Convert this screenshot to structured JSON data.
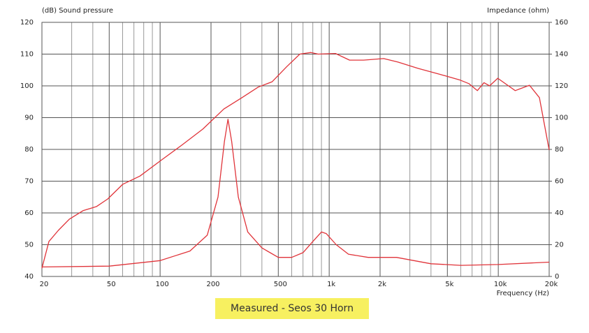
{
  "chart_data": {
    "type": "line",
    "title": "Measured - Seos 30 Horn",
    "ylabel": "(dB)  Sound pressure",
    "y2label": "Impedance  (ohm)",
    "xlabel": "Frequency  (Hz)",
    "xscale": "log",
    "grid": true,
    "xlim": [
      20,
      20000
    ],
    "xticks": [
      20,
      50,
      100,
      200,
      500,
      {
        "value": 1000,
        "label": "1k"
      },
      {
        "value": 2000,
        "label": "2k"
      },
      {
        "value": 5000,
        "label": "5k"
      },
      {
        "value": 10000,
        "label": "10k"
      },
      {
        "value": 20000,
        "label": "20k"
      }
    ],
    "xgrid": [
      30,
      40,
      60,
      70,
      80,
      90,
      300,
      400,
      600,
      700,
      800,
      900,
      3000,
      4000,
      6000,
      7000,
      8000,
      9000
    ],
    "ylim": [
      40,
      120
    ],
    "yticks": [
      40,
      50,
      60,
      70,
      80,
      90,
      100,
      110,
      120
    ],
    "y2lim": [
      0,
      160
    ],
    "y2ticks": [
      0,
      20,
      40,
      60,
      80,
      100,
      120,
      140,
      160
    ],
    "series": [
      {
        "name": "Sound pressure",
        "color": "#e0343a",
        "x": [
          20,
          22,
          25,
          29,
          35,
          42,
          49,
          60,
          76,
          101,
          134,
          179,
          238,
          305,
          380,
          460,
          560,
          670,
          780,
          860,
          1090,
          1320,
          1600,
          2100,
          2550,
          3360,
          4480,
          5960,
          6700,
          7520,
          8230,
          8880,
          9930,
          12600,
          15300,
          17500,
          20000
        ],
        "values": [
          42.6,
          51,
          54.5,
          58,
          60.7,
          62,
          64.4,
          69,
          71.6,
          76.5,
          81.3,
          86.4,
          92.7,
          96.3,
          99.6,
          101.3,
          106,
          110,
          110.5,
          110,
          110.2,
          108.1,
          108.1,
          108.6,
          107.5,
          105.5,
          103.7,
          101.8,
          100.7,
          98.5,
          101,
          100,
          102.4,
          98.5,
          100.2,
          96.3,
          79.8
        ]
      },
      {
        "name": "Impedance",
        "color": "#e0343a",
        "axis": "y2",
        "x": [
          20,
          50,
          100,
          150,
          190,
          220,
          240,
          252,
          265,
          290,
          330,
          400,
          500,
          600,
          700,
          800,
          900,
          960,
          1100,
          1300,
          1700,
          2500,
          4000,
          6000,
          10000,
          20000
        ],
        "values": [
          6,
          6.5,
          10,
          16,
          26,
          50,
          85,
          99,
          85,
          50,
          28,
          18,
          12,
          12,
          15,
          22,
          28,
          27,
          20,
          14,
          12,
          12,
          8,
          7,
          7.5,
          9
        ]
      }
    ]
  }
}
